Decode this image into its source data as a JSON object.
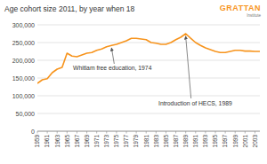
{
  "logo": {
    "title": "GRATTAN",
    "subtitle": "Institute"
  },
  "chart_data": {
    "type": "line",
    "title": "Age cohort size 2011, by year when 18",
    "x": [
      1959,
      1960,
      1961,
      1962,
      1963,
      1964,
      1965,
      1966,
      1967,
      1968,
      1969,
      1970,
      1971,
      1972,
      1973,
      1974,
      1975,
      1976,
      1977,
      1978,
      1979,
      1980,
      1981,
      1982,
      1983,
      1984,
      1985,
      1986,
      1987,
      1988,
      1989,
      1990,
      1991,
      1992,
      1993,
      1994,
      1995,
      1996,
      1997,
      1998,
      1999,
      2000,
      2001,
      2002,
      2003,
      2004
    ],
    "values": [
      135000,
      145000,
      148000,
      165000,
      175000,
      180000,
      220000,
      212000,
      210000,
      215000,
      220000,
      222000,
      228000,
      232000,
      238000,
      242000,
      245000,
      250000,
      255000,
      262000,
      262000,
      260000,
      258000,
      250000,
      248000,
      245000,
      245000,
      250000,
      258000,
      265000,
      275000,
      262000,
      250000,
      242000,
      235000,
      230000,
      225000,
      222000,
      222000,
      225000,
      228000,
      228000,
      226000,
      226000,
      225000,
      225000
    ],
    "color": "#f7941d",
    "xlim": [
      1959,
      2004
    ],
    "xticks": [
      1959,
      1961,
      1963,
      1965,
      1967,
      1969,
      1971,
      1973,
      1975,
      1977,
      1979,
      1981,
      1983,
      1985,
      1987,
      1989,
      1991,
      1993,
      1995,
      1997,
      1999,
      2001,
      2003
    ],
    "ylim": [
      0,
      300000
    ],
    "yticks": [
      0,
      {
        "value": 50000,
        "label": "50,000"
      },
      {
        "value": 100000,
        "label": "100,000"
      },
      {
        "value": 150000,
        "label": "150,000"
      },
      {
        "value": 200000,
        "label": "200,000"
      },
      {
        "value": 250000,
        "label": "250,000"
      },
      {
        "value": 300000,
        "label": "300,000"
      }
    ],
    "grid": true,
    "annotations": [
      {
        "text": "Whitlam free education, 1974",
        "x": 1974
      },
      {
        "text": "Introduction of HECS, 1989",
        "x": 1989
      }
    ]
  }
}
